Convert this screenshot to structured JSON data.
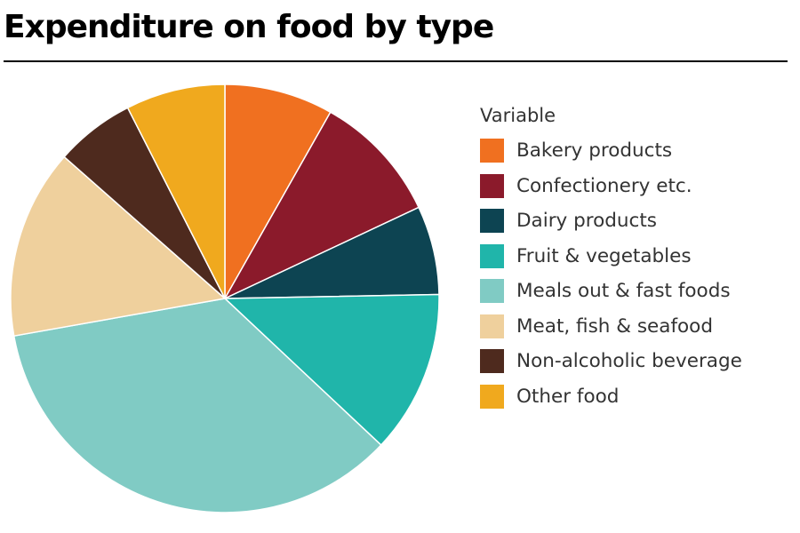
{
  "title": "Expenditure on food by type",
  "chart_data": {
    "type": "pie",
    "title": "Expenditure on food by type",
    "legend_title": "Variable",
    "legend_position": "right",
    "start_angle_deg": 0,
    "direction": "clockwise",
    "slices": [
      {
        "label": "Bakery products",
        "value": 8.2,
        "color": "#F07020"
      },
      {
        "label": "Confectionery etc.",
        "value": 9.8,
        "color": "#8B1A2B"
      },
      {
        "label": "Dairy products",
        "value": 6.7,
        "color": "#0D4452"
      },
      {
        "label": "Fruit & vegetables",
        "value": 12.3,
        "color": "#20B5AA"
      },
      {
        "label": "Meals out & fast foods",
        "value": 35.2,
        "color": "#80CBC4"
      },
      {
        "label": "Meat, fish & seafood",
        "value": 14.3,
        "color": "#EFD09D"
      },
      {
        "label": "Non-alcoholic beverage",
        "value": 6.0,
        "color": "#4E2A1E"
      },
      {
        "label": "Other food",
        "value": 7.5,
        "color": "#F0A91E"
      }
    ]
  }
}
